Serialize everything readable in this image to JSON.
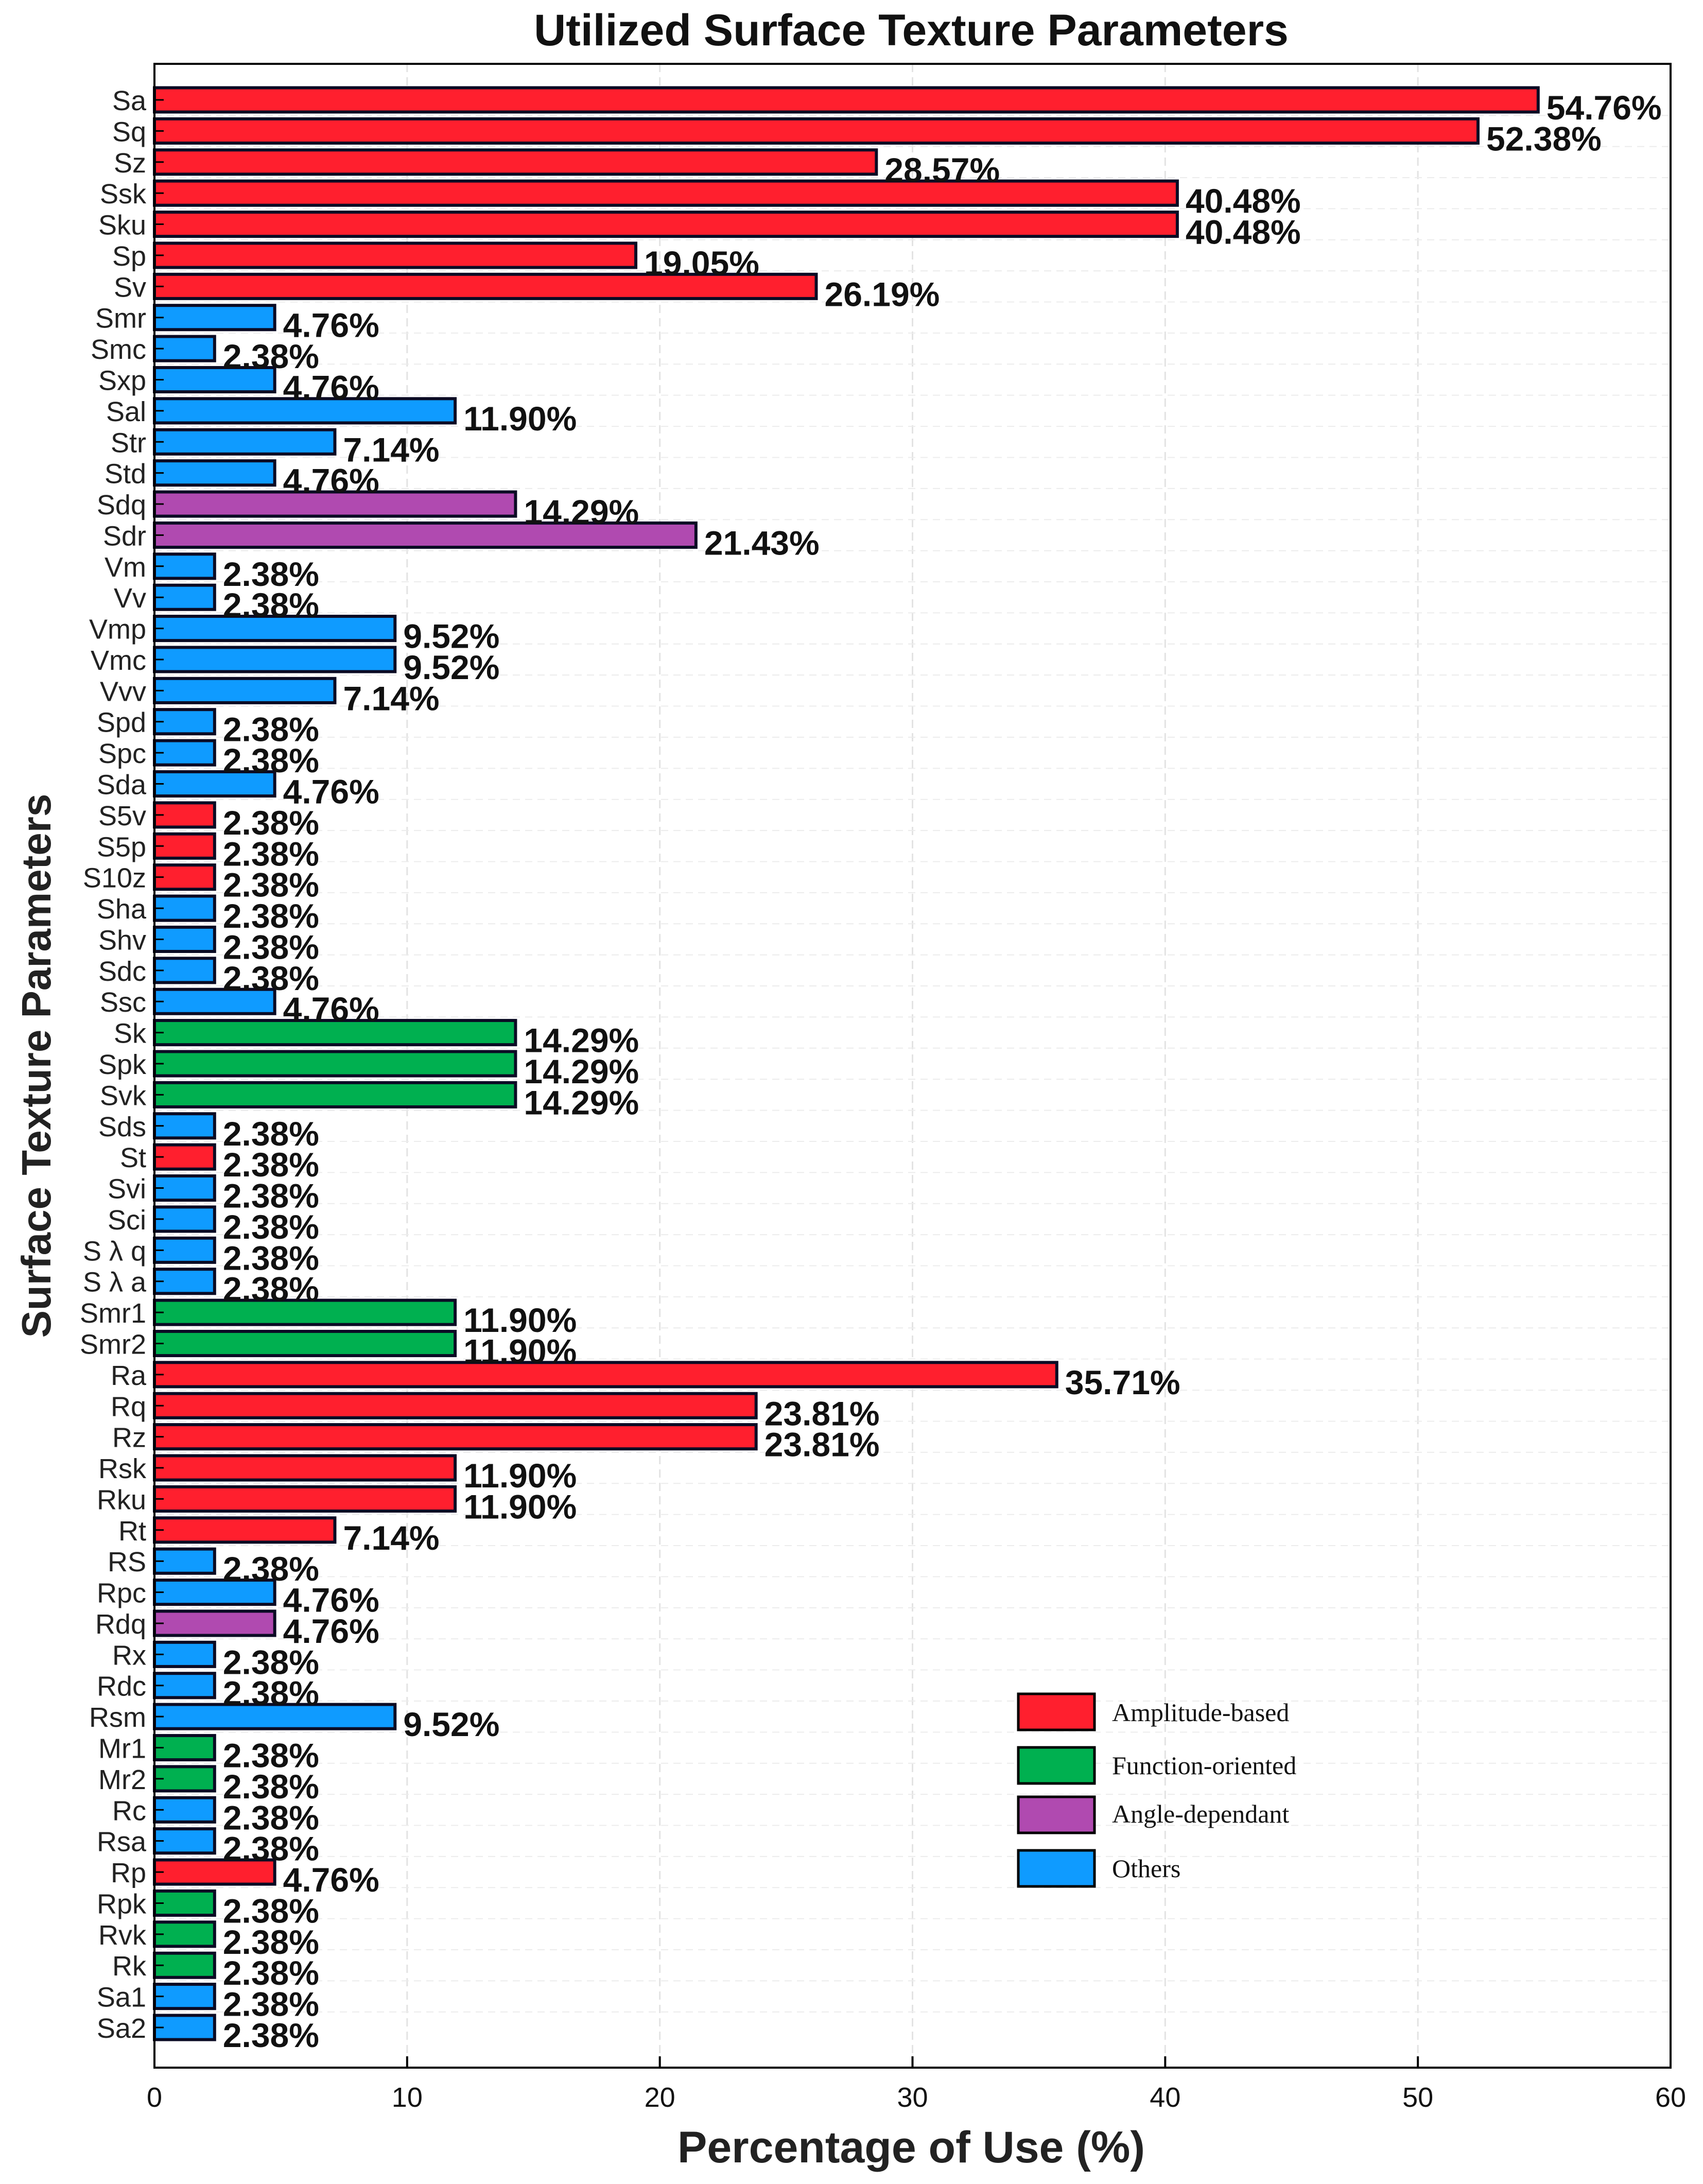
{
  "chart_data": {
    "type": "bar",
    "orientation": "horizontal",
    "title": "Utilized Surface Texture Parameters",
    "xlabel": "Percentage of Use (%)",
    "ylabel": "Surface Texture Parameters",
    "xlim": [
      0,
      60
    ],
    "xticks": [
      0,
      10,
      20,
      30,
      40,
      50,
      60
    ],
    "grid": true,
    "legend_position": "lower-right",
    "categories_colors": {
      "amplitude": "#ff1f2e",
      "function": "#00b050",
      "angle": "#b04ab0",
      "others": "#0f9bff"
    },
    "legend": [
      {
        "key": "amplitude",
        "label": "Amplitude-based"
      },
      {
        "key": "function",
        "label": "Function-oriented"
      },
      {
        "key": "angle",
        "label": "Angle-dependant"
      },
      {
        "key": "others",
        "label": "Others"
      }
    ],
    "bars": [
      {
        "label": "Sa",
        "value": 54.76,
        "text": "54.76%",
        "category": "amplitude"
      },
      {
        "label": "Sq",
        "value": 52.38,
        "text": "52.38%",
        "category": "amplitude"
      },
      {
        "label": "Sz",
        "value": 28.57,
        "text": "28.57%",
        "category": "amplitude"
      },
      {
        "label": "Ssk",
        "value": 40.48,
        "text": "40.48%",
        "category": "amplitude"
      },
      {
        "label": "Sku",
        "value": 40.48,
        "text": "40.48%",
        "category": "amplitude"
      },
      {
        "label": "Sp",
        "value": 19.05,
        "text": "19.05%",
        "category": "amplitude"
      },
      {
        "label": "Sv",
        "value": 26.19,
        "text": "26.19%",
        "category": "amplitude"
      },
      {
        "label": "Smr",
        "value": 4.76,
        "text": "4.76%",
        "category": "others"
      },
      {
        "label": "Smc",
        "value": 2.38,
        "text": "2.38%",
        "category": "others"
      },
      {
        "label": "Sxp",
        "value": 4.76,
        "text": "4.76%",
        "category": "others"
      },
      {
        "label": "Sal",
        "value": 11.9,
        "text": "11.90%",
        "category": "others"
      },
      {
        "label": "Str",
        "value": 7.14,
        "text": "7.14%",
        "category": "others"
      },
      {
        "label": "Std",
        "value": 4.76,
        "text": "4.76%",
        "category": "others"
      },
      {
        "label": "Sdq",
        "value": 14.29,
        "text": "14.29%",
        "category": "angle"
      },
      {
        "label": "Sdr",
        "value": 21.43,
        "text": "21.43%",
        "category": "angle"
      },
      {
        "label": "Vm",
        "value": 2.38,
        "text": "2.38%",
        "category": "others"
      },
      {
        "label": "Vv",
        "value": 2.38,
        "text": "2.38%",
        "category": "others"
      },
      {
        "label": "Vmp",
        "value": 9.52,
        "text": "9.52%",
        "category": "others"
      },
      {
        "label": "Vmc",
        "value": 9.52,
        "text": "9.52%",
        "category": "others"
      },
      {
        "label": "Vvv",
        "value": 7.14,
        "text": "7.14%",
        "category": "others"
      },
      {
        "label": "Spd",
        "value": 2.38,
        "text": "2.38%",
        "category": "others"
      },
      {
        "label": "Spc",
        "value": 2.38,
        "text": "2.38%",
        "category": "others"
      },
      {
        "label": "Sda",
        "value": 4.76,
        "text": "4.76%",
        "category": "others"
      },
      {
        "label": "S5v",
        "value": 2.38,
        "text": "2.38%",
        "category": "amplitude"
      },
      {
        "label": "S5p",
        "value": 2.38,
        "text": "2.38%",
        "category": "amplitude"
      },
      {
        "label": "S10z",
        "value": 2.38,
        "text": "2.38%",
        "category": "amplitude"
      },
      {
        "label": "Sha",
        "value": 2.38,
        "text": "2.38%",
        "category": "others"
      },
      {
        "label": "Shv",
        "value": 2.38,
        "text": "2.38%",
        "category": "others"
      },
      {
        "label": "Sdc",
        "value": 2.38,
        "text": "2.38%",
        "category": "others"
      },
      {
        "label": "Ssc",
        "value": 4.76,
        "text": "4.76%",
        "category": "others"
      },
      {
        "label": "Sk",
        "value": 14.29,
        "text": "14.29%",
        "category": "function"
      },
      {
        "label": "Spk",
        "value": 14.29,
        "text": "14.29%",
        "category": "function"
      },
      {
        "label": "Svk",
        "value": 14.29,
        "text": "14.29%",
        "category": "function"
      },
      {
        "label": "Sds",
        "value": 2.38,
        "text": "2.38%",
        "category": "others"
      },
      {
        "label": "St",
        "value": 2.38,
        "text": "2.38%",
        "category": "amplitude"
      },
      {
        "label": "Svi",
        "value": 2.38,
        "text": "2.38%",
        "category": "others"
      },
      {
        "label": "Sci",
        "value": 2.38,
        "text": "2.38%",
        "category": "others"
      },
      {
        "label": "S λ q",
        "value": 2.38,
        "text": "2.38%",
        "category": "others"
      },
      {
        "label": "S λ a",
        "value": 2.38,
        "text": "2.38%",
        "category": "others"
      },
      {
        "label": "Smr1",
        "value": 11.9,
        "text": "11.90%",
        "category": "function"
      },
      {
        "label": "Smr2",
        "value": 11.9,
        "text": "11.90%",
        "category": "function"
      },
      {
        "label": "Ra",
        "value": 35.71,
        "text": "35.71%",
        "category": "amplitude"
      },
      {
        "label": "Rq",
        "value": 23.81,
        "text": "23.81%",
        "category": "amplitude"
      },
      {
        "label": "Rz",
        "value": 23.81,
        "text": "23.81%",
        "category": "amplitude"
      },
      {
        "label": "Rsk",
        "value": 11.9,
        "text": "11.90%",
        "category": "amplitude"
      },
      {
        "label": "Rku",
        "value": 11.9,
        "text": "11.90%",
        "category": "amplitude"
      },
      {
        "label": "Rt",
        "value": 7.14,
        "text": "7.14%",
        "category": "amplitude"
      },
      {
        "label": "RS",
        "value": 2.38,
        "text": "2.38%",
        "category": "others"
      },
      {
        "label": "Rpc",
        "value": 4.76,
        "text": "4.76%",
        "category": "others"
      },
      {
        "label": "Rdq",
        "value": 4.76,
        "text": "4.76%",
        "category": "angle"
      },
      {
        "label": "Rx",
        "value": 2.38,
        "text": "2.38%",
        "category": "others"
      },
      {
        "label": "Rdc",
        "value": 2.38,
        "text": "2.38%",
        "category": "others"
      },
      {
        "label": "Rsm",
        "value": 9.52,
        "text": "9.52%",
        "category": "others"
      },
      {
        "label": "Mr1",
        "value": 2.38,
        "text": "2.38%",
        "category": "function"
      },
      {
        "label": "Mr2",
        "value": 2.38,
        "text": "2.38%",
        "category": "function"
      },
      {
        "label": "Rc",
        "value": 2.38,
        "text": "2.38%",
        "category": "others"
      },
      {
        "label": "Rsa",
        "value": 2.38,
        "text": "2.38%",
        "category": "others"
      },
      {
        "label": "Rp",
        "value": 4.76,
        "text": "4.76%",
        "category": "amplitude"
      },
      {
        "label": "Rpk",
        "value": 2.38,
        "text": "2.38%",
        "category": "function"
      },
      {
        "label": "Rvk",
        "value": 2.38,
        "text": "2.38%",
        "category": "function"
      },
      {
        "label": "Rk",
        "value": 2.38,
        "text": "2.38%",
        "category": "function"
      },
      {
        "label": "Sa1",
        "value": 2.38,
        "text": "2.38%",
        "category": "others"
      },
      {
        "label": "Sa2",
        "value": 2.38,
        "text": "2.38%",
        "category": "others"
      }
    ]
  }
}
